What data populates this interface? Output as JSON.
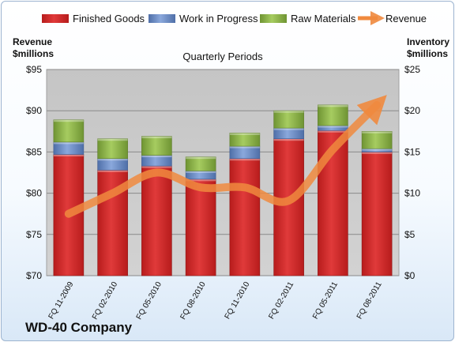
{
  "chart_data": {
    "type": "bar",
    "stacked": true,
    "title": "Quarterly Periods",
    "company": "WD-40 Company",
    "left_axis_label": [
      "Revenue",
      "$millions"
    ],
    "right_axis_label": [
      "Inventory",
      "$millions"
    ],
    "categories": [
      "FQ 11-2009",
      "FQ 02-2010",
      "FQ 05-2010",
      "FQ 08-2010",
      "FQ 11-2010",
      "FQ 02-2011",
      "FQ 05-2011",
      "FQ 08-2011"
    ],
    "left_ticks": [
      "$70",
      "$75",
      "$80",
      "$85",
      "$90",
      "$95"
    ],
    "right_ticks": [
      "$0",
      "$5",
      "$10",
      "$15",
      "$20",
      "$25"
    ],
    "ylim_left": [
      70,
      95
    ],
    "ylim_right": [
      0,
      25
    ],
    "grid": true,
    "legend_position": "top",
    "series": [
      {
        "name": "Finished Goods",
        "axis": "right",
        "color": "#d62c2c",
        "values": [
          14.7,
          12.8,
          13.3,
          11.7,
          14.2,
          16.6,
          17.6,
          15.0
        ]
      },
      {
        "name": "Work in Progress",
        "axis": "right",
        "color": "#6d8fc9",
        "values": [
          1.5,
          1.4,
          1.3,
          1.0,
          1.5,
          1.3,
          0.6,
          0.4
        ]
      },
      {
        "name": "Raw Materials",
        "axis": "right",
        "color": "#8fb74a",
        "values": [
          2.7,
          2.4,
          2.3,
          1.7,
          1.6,
          2.1,
          2.5,
          2.1
        ]
      },
      {
        "name": "Revenue",
        "axis": "left",
        "type": "line",
        "color": "#f08a3e",
        "values": [
          77.5,
          80.0,
          82.5,
          80.7,
          80.7,
          79.1,
          85.3,
          90.7
        ]
      }
    ]
  }
}
